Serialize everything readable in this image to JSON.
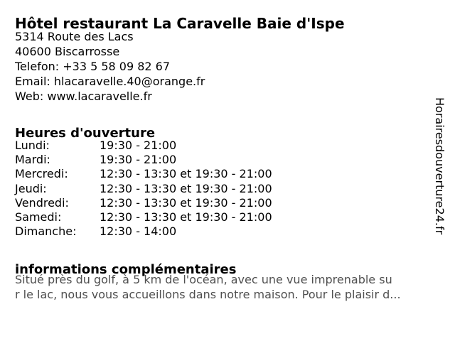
{
  "business": {
    "title": "Hôtel restaurant La Caravelle Baie d'Ispe",
    "contact_lines": [
      "5314 Route des Lacs",
      "40600 Biscarrosse",
      "Telefon: +33 5 58 09 82 67",
      "Email: hlacaravelle.40@orange.fr",
      "Web: www.lacaravelle.fr"
    ]
  },
  "hours": {
    "heading": "Heures d'ouverture",
    "rows": [
      {
        "day": "Lundi:",
        "time": "19:30 - 21:00"
      },
      {
        "day": "Mardi:",
        "time": "19:30 - 21:00"
      },
      {
        "day": "Mercredi:",
        "time": "12:30 - 13:30 et 19:30 - 21:00"
      },
      {
        "day": "Jeudi:",
        "time": "12:30 - 13:30 et 19:30 - 21:00"
      },
      {
        "day": "Vendredi:",
        "time": "12:30 - 13:30 et 19:30 - 21:00"
      },
      {
        "day": "Samedi:",
        "time": "12:30 - 13:30 et 19:30 - 21:00"
      },
      {
        "day": "Dimanche:",
        "time": "12:30 - 14:00"
      }
    ]
  },
  "info": {
    "heading": "informations complémentaires",
    "lines": [
      "Situé près du golf, à 5 km de l'océan, avec une vue imprenable su",
      "r le lac, nous vous accueillons dans notre maison. Pour le plaisir d..."
    ]
  },
  "watermark": {
    "text": "Horairesdouverture24.fr"
  },
  "colors": {
    "text": "#000000",
    "muted_text": "#4f4f4f",
    "background": "#ffffff"
  }
}
